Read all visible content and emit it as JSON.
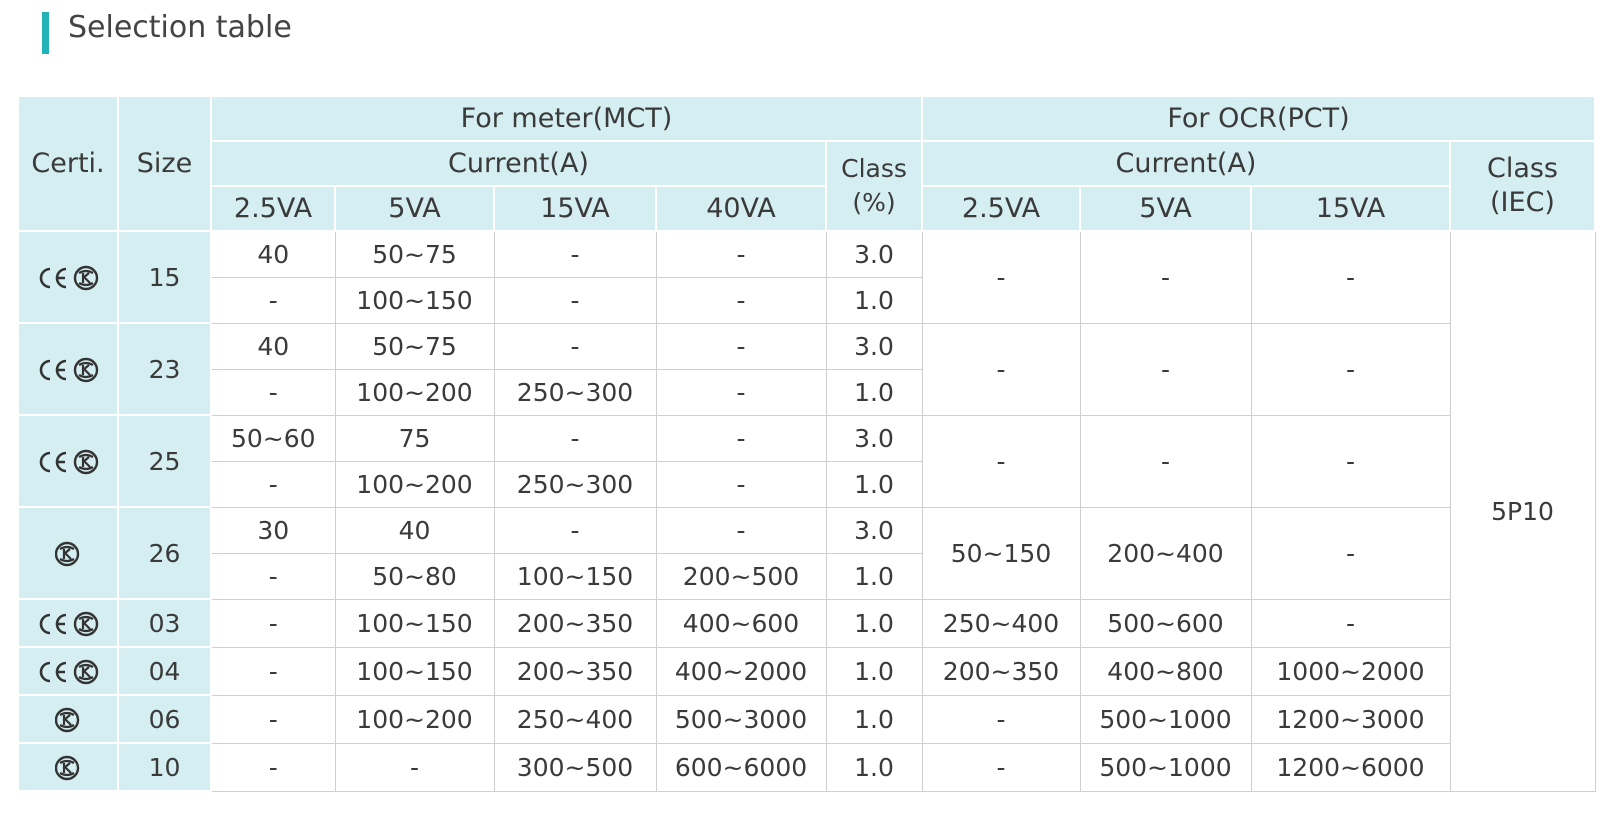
{
  "header": {
    "title": "Selection table"
  },
  "table": {
    "certi": "Certi.",
    "size": "Size",
    "meter": "For meter(MCT)",
    "ocr": "For OCR(PCT)",
    "current": "Current(A)",
    "meter_class": [
      "Class",
      "(%)"
    ],
    "ocr_class": [
      "Class",
      "(IEC)"
    ],
    "meter_va": [
      "2.5VA",
      "5VA",
      "15VA",
      "40VA"
    ],
    "ocr_va": [
      "2.5VA",
      "5VA",
      "15VA"
    ],
    "class_iec_value": "5P10",
    "groups": [
      {
        "marks": [
          "CE",
          "KC"
        ],
        "size": "15",
        "mct": [
          [
            "40",
            "50~75",
            "-",
            "-",
            "3.0"
          ],
          [
            "-",
            "100~150",
            "-",
            "-",
            "1.0"
          ]
        ],
        "pct": [
          "-",
          "-",
          "-"
        ]
      },
      {
        "marks": [
          "CE",
          "KC"
        ],
        "size": "23",
        "mct": [
          [
            "40",
            "50~75",
            "-",
            "-",
            "3.0"
          ],
          [
            "-",
            "100~200",
            "250~300",
            "-",
            "1.0"
          ]
        ],
        "pct": [
          "-",
          "-",
          "-"
        ]
      },
      {
        "marks": [
          "CE",
          "KC"
        ],
        "size": "25",
        "mct": [
          [
            "50~60",
            "75",
            "-",
            "-",
            "3.0"
          ],
          [
            "-",
            "100~200",
            "250~300",
            "-",
            "1.0"
          ]
        ],
        "pct": [
          "-",
          "-",
          "-"
        ]
      },
      {
        "marks": [
          "KC"
        ],
        "size": "26",
        "mct": [
          [
            "30",
            "40",
            "-",
            "-",
            "3.0"
          ],
          [
            "-",
            "50~80",
            "100~150",
            "200~500",
            "1.0"
          ]
        ],
        "pct": [
          "50~150",
          "200~400",
          "-"
        ]
      },
      {
        "marks": [
          "CE",
          "KC"
        ],
        "size": "03",
        "mct": [
          [
            "-",
            "100~150",
            "200~350",
            "400~600",
            "1.0"
          ]
        ],
        "pct": [
          "250~400",
          "500~600",
          "-"
        ]
      },
      {
        "marks": [
          "CE",
          "KC"
        ],
        "size": "04",
        "mct": [
          [
            "-",
            "100~150",
            "200~350",
            "400~2000",
            "1.0"
          ]
        ],
        "pct": [
          "200~350",
          "400~800",
          "1000~2000"
        ]
      },
      {
        "marks": [
          "KC"
        ],
        "size": "06",
        "mct": [
          [
            "-",
            "100~200",
            "250~400",
            "500~3000",
            "1.0"
          ]
        ],
        "pct": [
          "-",
          "500~1000",
          "1200~3000"
        ]
      },
      {
        "marks": [
          "KC"
        ],
        "size": "10",
        "mct": [
          [
            "-",
            "-",
            "300~500",
            "600~6000",
            "1.0"
          ]
        ],
        "pct": [
          "-",
          "500~1000",
          "1200~6000"
        ]
      }
    ]
  }
}
